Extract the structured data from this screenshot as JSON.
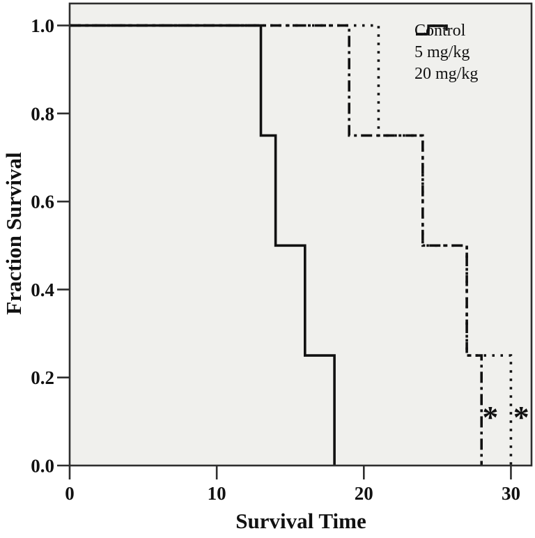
{
  "figure": {
    "x_axis_title": "Survival Time",
    "y_axis_title": "Fraction Survival"
  },
  "legend": {
    "items": [
      {
        "label": "Control",
        "dash": "solid"
      },
      {
        "label": "5 mg/kg",
        "dash": "dashdot"
      },
      {
        "label": "20 mg/kg",
        "dash": "dotted"
      }
    ]
  },
  "chart_data": {
    "type": "line",
    "subtype": "kaplan-meier-step",
    "title": "",
    "xlabel": "Survival Time",
    "ylabel": "Fraction Survival",
    "xlim": [
      0,
      31.4
    ],
    "ylim": [
      0,
      1.05
    ],
    "grid": false,
    "legend_position": "top-right",
    "x_ticks": [
      {
        "value": 0,
        "label": "0"
      },
      {
        "value": 10,
        "label": "10"
      },
      {
        "value": 20,
        "label": "20"
      },
      {
        "value": 30,
        "label": "30"
      }
    ],
    "y_ticks": [
      {
        "value": 1.0,
        "label": "1.0"
      },
      {
        "value": 0.8,
        "label": "0.8"
      },
      {
        "value": 0.6,
        "label": "0.6"
      },
      {
        "value": 0.4,
        "label": "0.4"
      },
      {
        "value": 0.2,
        "label": "0.2"
      },
      {
        "value": 0.0,
        "label": "0.0"
      }
    ],
    "series": [
      {
        "name": "Control",
        "dash": "solid",
        "points": [
          [
            0,
            1.0
          ],
          [
            13,
            1.0
          ],
          [
            13,
            0.75
          ],
          [
            14,
            0.75
          ],
          [
            14,
            0.5
          ],
          [
            16,
            0.5
          ],
          [
            16,
            0.25
          ],
          [
            18,
            0.25
          ],
          [
            18,
            0.0
          ]
        ]
      },
      {
        "name": "5 mg/kg",
        "dash": "dashdot",
        "points": [
          [
            0,
            1.0
          ],
          [
            19,
            1.0
          ],
          [
            19,
            0.75
          ],
          [
            24,
            0.75
          ],
          [
            24,
            0.5
          ],
          [
            27,
            0.5
          ],
          [
            27,
            0.25
          ],
          [
            28,
            0.25
          ],
          [
            28,
            0.0
          ]
        ]
      },
      {
        "name": "20 mg/kg",
        "dash": "dotted",
        "points": [
          [
            0,
            1.0
          ],
          [
            21,
            1.0
          ],
          [
            21,
            0.75
          ],
          [
            24,
            0.75
          ],
          [
            24,
            0.5
          ],
          [
            27,
            0.5
          ],
          [
            27,
            0.25
          ],
          [
            30,
            0.25
          ],
          [
            30,
            0.0
          ]
        ]
      }
    ],
    "annotations": [
      {
        "text": "*",
        "x": 28.6,
        "y": 0.12
      },
      {
        "text": "*",
        "x": 30.7,
        "y": 0.12
      }
    ],
    "colors": {
      "line": "#111111",
      "plot_bg": "#f0f0ed",
      "frame": "#2e2e2e",
      "page_bg": "#ffffff"
    }
  }
}
